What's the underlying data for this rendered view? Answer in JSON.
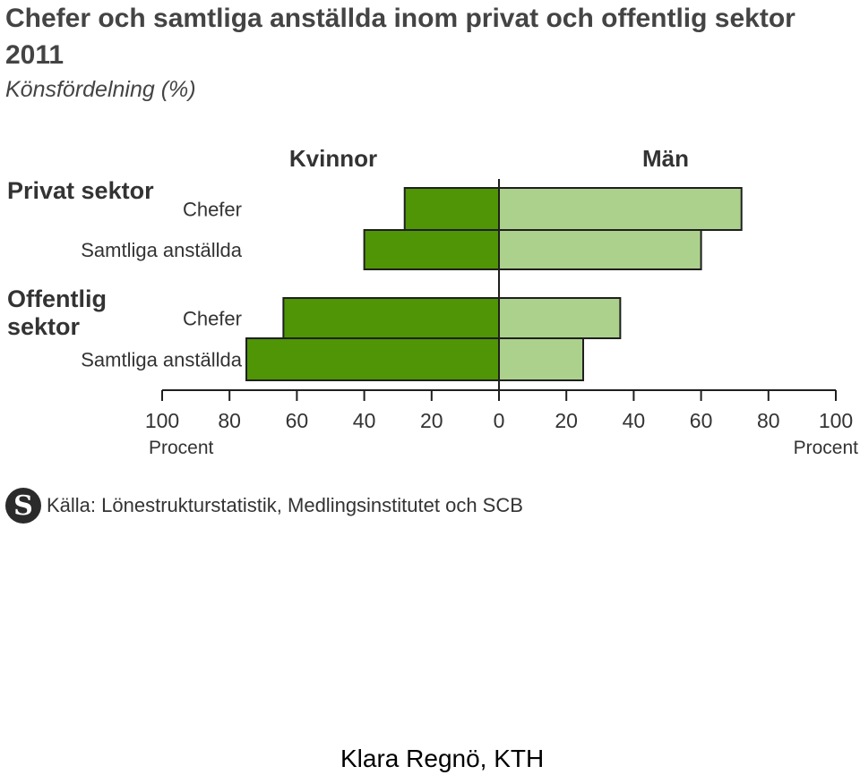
{
  "chart_data": {
    "type": "bar",
    "title": "Chefer och samtliga anställda inom privat och offentlig sektor 2011",
    "subtitle": "Könsfördelning (%)",
    "left_side_label": "Kvinnor",
    "right_side_label": "Män",
    "groups": [
      "Privat sektor",
      "Offentlig sektor"
    ],
    "categories": [
      {
        "group": "Privat sektor",
        "label": "Chefer"
      },
      {
        "group": "Privat sektor",
        "label": "Samtliga anställda"
      },
      {
        "group": "Offentlig sektor",
        "label": "Chefer"
      },
      {
        "group": "Offentlig sektor",
        "label": "Samtliga anställda"
      }
    ],
    "series": [
      {
        "name": "Kvinnor",
        "color": "#4f9506",
        "values": [
          28,
          40,
          64,
          75
        ]
      },
      {
        "name": "Män",
        "color": "#acd18c",
        "values": [
          72,
          60,
          36,
          25
        ]
      }
    ],
    "left_axis": {
      "ticks": [
        "100",
        "80",
        "60",
        "40",
        "20",
        "0"
      ],
      "label": "Procent",
      "range": [
        100,
        0
      ]
    },
    "right_axis": {
      "ticks": [
        "20",
        "40",
        "60",
        "80",
        "100"
      ],
      "label": "Procent",
      "range": [
        0,
        100
      ]
    },
    "grid": false
  },
  "source": {
    "text": "Källa: Lönestrukturstatistik, Medlingsinstitutet och SCB",
    "logo": "scb-logo-icon"
  },
  "footer": {
    "author": "Klara Regnö, KTH"
  }
}
